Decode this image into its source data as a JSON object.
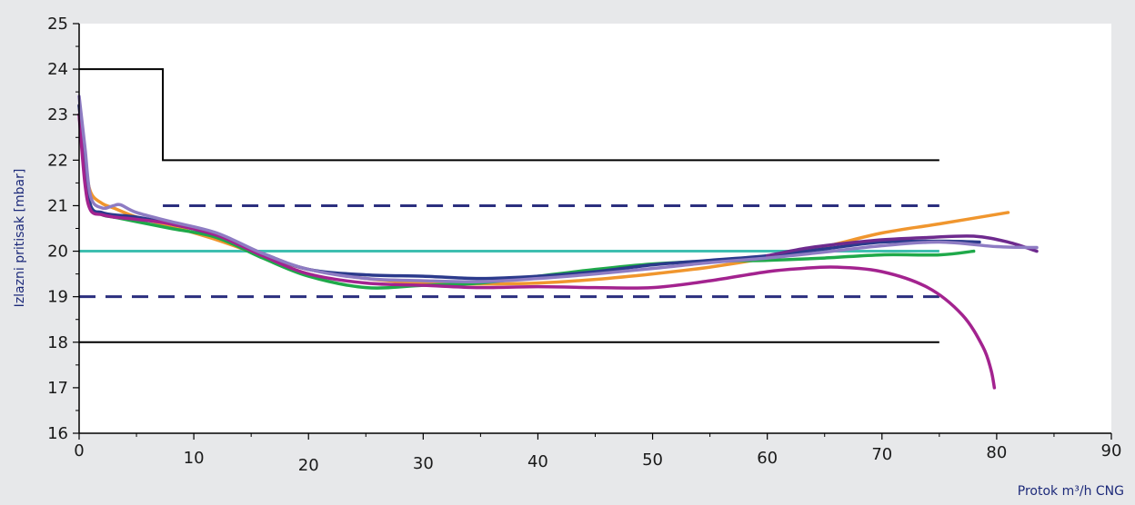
{
  "chart_data": {
    "type": "line",
    "title": "",
    "xlabel": "Protok m³/h CNG",
    "ylabel": "Izlazni pritisak [mbar]",
    "xlim": [
      0,
      90
    ],
    "ylim": [
      16,
      25
    ],
    "xticks": [
      0,
      10,
      20,
      30,
      40,
      50,
      60,
      70,
      80,
      90
    ],
    "yticks": [
      16,
      17,
      18,
      19,
      20,
      21,
      22,
      23,
      24,
      25
    ],
    "grid": false,
    "colors": {
      "plot_bg": "#ffffff",
      "page_bg": "#e7e8ea",
      "axis": "#000000",
      "limit_outer": "#000000",
      "limit_inner": "#2b2f7e",
      "setpoint": "#3fbfb0"
    },
    "reference_lines": [
      {
        "kind": "outer-limit-upper",
        "points": [
          [
            0,
            24
          ],
          [
            7.3,
            24
          ],
          [
            7.3,
            22
          ],
          [
            75,
            22
          ]
        ],
        "color": "#000000",
        "dash": "solid"
      },
      {
        "kind": "outer-limit-lower",
        "points": [
          [
            0,
            18
          ],
          [
            75,
            18
          ]
        ],
        "color": "#000000",
        "dash": "solid"
      },
      {
        "kind": "inner-limit-upper",
        "points": [
          [
            7.3,
            21
          ],
          [
            75,
            21
          ]
        ],
        "color": "#2b2f7e",
        "dash": "dashed"
      },
      {
        "kind": "inner-limit-lower",
        "points": [
          [
            0,
            19
          ],
          [
            75,
            19
          ]
        ],
        "color": "#2b2f7e",
        "dash": "dashed"
      },
      {
        "kind": "setpoint",
        "points": [
          [
            0,
            20
          ],
          [
            75,
            20
          ]
        ],
        "color": "#3fbfb0",
        "dash": "solid"
      }
    ],
    "series": [
      {
        "color": "#f0962e",
        "x": [
          0,
          0.5,
          1,
          2,
          3,
          5,
          8,
          12,
          16,
          20,
          25,
          30,
          35,
          40,
          45,
          50,
          55,
          60,
          65,
          70,
          75,
          81
        ],
        "y": [
          23.2,
          22.0,
          21.3,
          21.05,
          20.95,
          20.75,
          20.55,
          20.25,
          19.9,
          19.6,
          19.4,
          19.3,
          19.28,
          19.3,
          19.38,
          19.5,
          19.65,
          19.85,
          20.1,
          20.4,
          20.6,
          20.85
        ]
      },
      {
        "color": "#1fa94a",
        "x": [
          0,
          0.5,
          1,
          2,
          3,
          5,
          8,
          12,
          16,
          20,
          25,
          30,
          35,
          40,
          45,
          50,
          55,
          60,
          65,
          70,
          75,
          78
        ],
        "y": [
          23.0,
          21.8,
          21.0,
          20.8,
          20.75,
          20.65,
          20.5,
          20.3,
          19.85,
          19.45,
          19.2,
          19.25,
          19.3,
          19.45,
          19.6,
          19.72,
          19.78,
          19.8,
          19.85,
          19.92,
          19.92,
          20.0
        ]
      },
      {
        "color": "#2b3a8c",
        "x": [
          0,
          0.5,
          1,
          2,
          3,
          5,
          8,
          12,
          16,
          20,
          25,
          30,
          35,
          40,
          45,
          50,
          55,
          60,
          65,
          70,
          75,
          78.5
        ],
        "y": [
          23.2,
          22.0,
          21.0,
          20.85,
          20.8,
          20.75,
          20.6,
          20.35,
          19.95,
          19.6,
          19.48,
          19.45,
          19.4,
          19.45,
          19.55,
          19.7,
          19.8,
          19.9,
          20.05,
          20.2,
          20.22,
          20.2
        ]
      },
      {
        "color": "#a3238f",
        "x": [
          0,
          0.5,
          1,
          2,
          3,
          5,
          8,
          12,
          16,
          20,
          25,
          30,
          35,
          40,
          45,
          50,
          55,
          60,
          63,
          66,
          70,
          74,
          77,
          78.8,
          79.5,
          79.8
        ],
        "y": [
          23.0,
          21.5,
          20.9,
          20.8,
          20.75,
          20.7,
          20.6,
          20.35,
          19.9,
          19.5,
          19.3,
          19.25,
          19.2,
          19.22,
          19.2,
          19.2,
          19.35,
          19.55,
          19.62,
          19.65,
          19.55,
          19.2,
          18.6,
          17.9,
          17.4,
          17.0
        ]
      },
      {
        "color": "#6e2a8e",
        "x": [
          60,
          63,
          66,
          70,
          74,
          78,
          81,
          83.5
        ],
        "y": [
          19.9,
          20.05,
          20.15,
          20.25,
          20.3,
          20.33,
          20.2,
          20.0
        ]
      },
      {
        "color": "#8e7cc3",
        "x": [
          0,
          0.5,
          1,
          2,
          3,
          3.6,
          5,
          8,
          12,
          16,
          20,
          25,
          30,
          35,
          40,
          45,
          50,
          55,
          60,
          65,
          70,
          75,
          80,
          83.5
        ],
        "y": [
          23.4,
          22.3,
          21.2,
          20.95,
          21.0,
          21.02,
          20.85,
          20.65,
          20.4,
          19.95,
          19.6,
          19.4,
          19.35,
          19.33,
          19.4,
          19.5,
          19.62,
          19.75,
          19.85,
          19.98,
          20.12,
          20.2,
          20.1,
          20.08
        ]
      }
    ]
  }
}
